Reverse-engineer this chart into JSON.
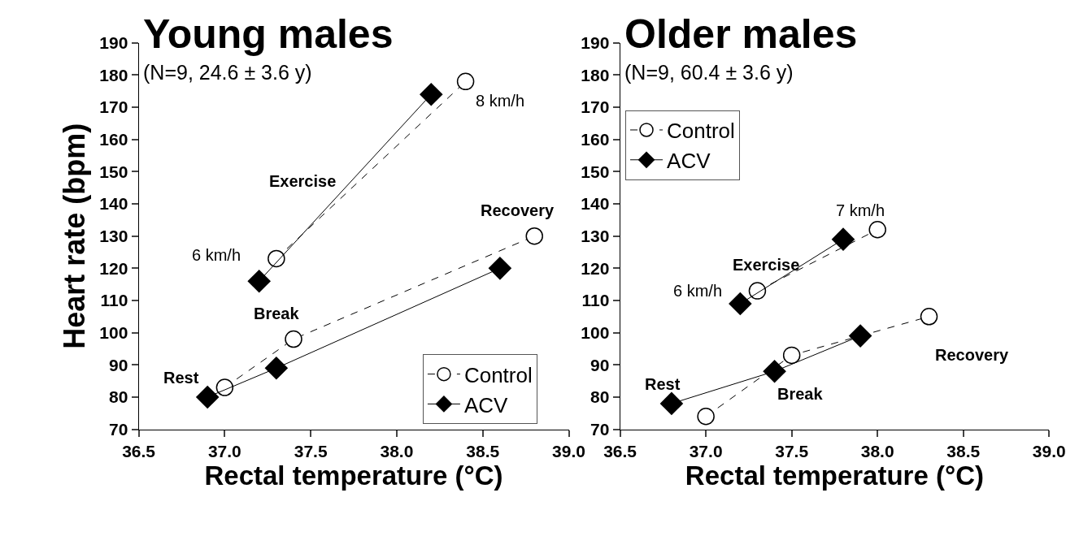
{
  "chart_data": [
    {
      "type": "line",
      "title": "Young males",
      "subtitle": "(N=9, 24.6 ± 3.6 y)",
      "xlabel": "Rectal temperature (°C)",
      "ylabel": "Heart rate (bpm)",
      "xlim": [
        36.5,
        39.0
      ],
      "xticks": [
        {
          "value": 36.5,
          "label": "36.5"
        },
        {
          "value": 37.0,
          "label": "37.0"
        },
        {
          "value": 37.5,
          "label": "37.5"
        },
        {
          "value": 38.0,
          "label": "38.0"
        },
        {
          "value": 38.5,
          "label": "38.5"
        },
        {
          "value": 39.0,
          "label": "39.0"
        }
      ],
      "ylim": [
        70,
        190
      ],
      "yticks": [
        70,
        80,
        90,
        100,
        110,
        120,
        130,
        140,
        150,
        160,
        170,
        180,
        190
      ],
      "legend": "bottom right",
      "series": [
        {
          "name": "Control",
          "color": "#000000",
          "marker": "circle",
          "line_style": "dashed",
          "x": [
            37.0,
            37.4,
            38.8
          ],
          "values": [
            83,
            98,
            130
          ]
        },
        {
          "color": "#000000",
          "marker": "circle",
          "line_style": "dashed",
          "x": [
            37.3,
            38.4
          ],
          "values": [
            123,
            178
          ]
        },
        {
          "name": "ACV",
          "color": "#000000",
          "marker": "diamond",
          "line_style": "solid",
          "x": [
            36.9,
            37.3,
            38.6
          ],
          "values": [
            80,
            89,
            120
          ]
        },
        {
          "color": "#000000",
          "marker": "diamond",
          "line_style": "solid",
          "x": [
            37.2,
            38.2
          ],
          "values": [
            116,
            174
          ]
        }
      ],
      "annotations": [
        "Exercise",
        "6 km/h",
        "8 km/h",
        "Recovery",
        "Break",
        "Rest"
      ]
    },
    {
      "type": "line",
      "title": "Older males",
      "subtitle": "(N=9, 60.4 ± 3.6 y)",
      "xlabel": "Rectal temperature (°C)",
      "xlim": [
        36.5,
        39.0
      ],
      "xticks": [
        {
          "value": 36.5,
          "label": "36.5"
        },
        {
          "value": 37.0,
          "label": "37.0"
        },
        {
          "value": 37.5,
          "label": "37.5"
        },
        {
          "value": 38.0,
          "label": "38.0"
        },
        {
          "value": 38.5,
          "label": "38.5"
        },
        {
          "value": 39.0,
          "label": "39.0"
        }
      ],
      "ylim": [
        70,
        190
      ],
      "yticks": [
        70,
        80,
        90,
        100,
        110,
        120,
        130,
        140,
        150,
        160,
        170,
        180,
        190
      ],
      "legend": "top left",
      "series": [
        {
          "name": "Control",
          "color": "#000000",
          "marker": "circle",
          "line_style": "dashed",
          "x": [
            37.0,
            37.5,
            38.3
          ],
          "values": [
            74,
            93,
            105
          ]
        },
        {
          "color": "#000000",
          "marker": "circle",
          "line_style": "dashed",
          "x": [
            37.3,
            38.0
          ],
          "values": [
            113,
            132
          ]
        },
        {
          "name": "ACV",
          "color": "#000000",
          "marker": "diamond",
          "line_style": "solid",
          "x": [
            36.8,
            37.4,
            37.9
          ],
          "values": [
            78,
            88,
            99
          ]
        },
        {
          "color": "#000000",
          "marker": "diamond",
          "line_style": "solid",
          "x": [
            37.2,
            37.8
          ],
          "values": [
            109,
            129
          ]
        }
      ],
      "annotations": [
        "Exercise",
        "6 km/h",
        "7 km/h",
        "Recovery",
        "Break",
        "Rest"
      ]
    }
  ]
}
